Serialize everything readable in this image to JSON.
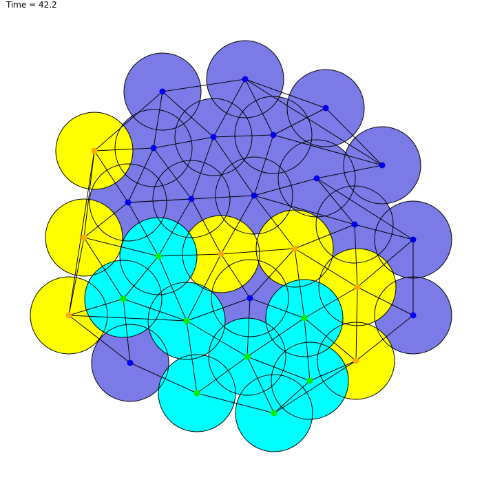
{
  "time_label": "Time = 42.2",
  "colors": {
    "background": "#ffffff",
    "purple_fill": "#7b7be8",
    "yellow_fill": "#ffff00",
    "cyan_fill": "#00ffff",
    "purple_node": "#0000ee",
    "yellow_node": "#ffaa00",
    "cyan_node": "#00ee00",
    "outline": "#000000",
    "edge": "#000000"
  },
  "nodes": [
    {
      "id": "p1",
      "group": "purple"
    },
    {
      "id": "p2",
      "group": "purple"
    },
    {
      "id": "p3",
      "group": "purple"
    },
    {
      "id": "p4",
      "group": "purple"
    },
    {
      "id": "p5",
      "group": "purple"
    },
    {
      "id": "p6",
      "group": "purple"
    },
    {
      "id": "p7",
      "group": "purple"
    },
    {
      "id": "p8",
      "group": "purple"
    },
    {
      "id": "p9",
      "group": "purple"
    },
    {
      "id": "p10",
      "group": "purple"
    },
    {
      "id": "p11",
      "group": "purple"
    },
    {
      "id": "p12",
      "group": "purple"
    },
    {
      "id": "p13",
      "group": "purple"
    },
    {
      "id": "p14",
      "group": "purple"
    },
    {
      "id": "p15",
      "group": "purple"
    },
    {
      "id": "p16",
      "group": "purple"
    },
    {
      "id": "y1",
      "group": "yellow"
    },
    {
      "id": "y2",
      "group": "yellow"
    },
    {
      "id": "y3",
      "group": "yellow"
    },
    {
      "id": "y4",
      "group": "yellow"
    },
    {
      "id": "y5",
      "group": "yellow"
    },
    {
      "id": "y6",
      "group": "yellow"
    },
    {
      "id": "y7",
      "group": "yellow"
    },
    {
      "id": "c1",
      "group": "cyan"
    },
    {
      "id": "c2",
      "group": "cyan"
    },
    {
      "id": "c3",
      "group": "cyan"
    },
    {
      "id": "c4",
      "group": "cyan"
    },
    {
      "id": "c5",
      "group": "cyan"
    },
    {
      "id": "c6",
      "group": "cyan"
    },
    {
      "id": "c7",
      "group": "cyan"
    },
    {
      "id": "c8",
      "group": "cyan"
    }
  ],
  "edges": [
    [
      "p1",
      "p2"
    ],
    [
      "p2",
      "p3"
    ],
    [
      "p1",
      "p4"
    ],
    [
      "p1",
      "p5"
    ],
    [
      "p2",
      "p5"
    ],
    [
      "p2",
      "p6"
    ],
    [
      "p3",
      "p6"
    ],
    [
      "p3",
      "p7"
    ],
    [
      "p2",
      "p7"
    ],
    [
      "y1",
      "p1"
    ],
    [
      "y1",
      "p4"
    ],
    [
      "y1",
      "p8"
    ],
    [
      "p4",
      "p5"
    ],
    [
      "p5",
      "p6"
    ],
    [
      "p6",
      "p7"
    ],
    [
      "p7",
      "p11"
    ],
    [
      "p6",
      "p10"
    ],
    [
      "p5",
      "p9"
    ],
    [
      "p5",
      "p10"
    ],
    [
      "p4",
      "p8"
    ],
    [
      "p4",
      "p9"
    ],
    [
      "p8",
      "p9"
    ],
    [
      "p9",
      "p10"
    ],
    [
      "p10",
      "p11"
    ],
    [
      "p9",
      "p8"
    ],
    [
      "p11",
      "p12"
    ],
    [
      "p10",
      "p12"
    ],
    [
      "p11",
      "p13"
    ],
    [
      "p12",
      "p13"
    ],
    [
      "y1",
      "y2"
    ],
    [
      "y1",
      "y3"
    ],
    [
      "y2",
      "p8"
    ],
    [
      "y2",
      "c1"
    ],
    [
      "y2",
      "c2"
    ],
    [
      "y2",
      "y3"
    ],
    [
      "y3",
      "c2"
    ],
    [
      "y3",
      "p16"
    ],
    [
      "y3",
      "c3"
    ],
    [
      "p8",
      "c1"
    ],
    [
      "p9",
      "c1"
    ],
    [
      "p9",
      "y4"
    ],
    [
      "p10",
      "y4"
    ],
    [
      "p10",
      "y5"
    ],
    [
      "p12",
      "y5"
    ],
    [
      "p12",
      "y6"
    ],
    [
      "p13",
      "y6"
    ],
    [
      "p13",
      "p14"
    ],
    [
      "c1",
      "y4"
    ],
    [
      "y4",
      "y5"
    ],
    [
      "y5",
      "y6"
    ],
    [
      "y6",
      "p14"
    ],
    [
      "y6",
      "y7"
    ],
    [
      "y6",
      "c5"
    ],
    [
      "p14",
      "y7"
    ],
    [
      "c1",
      "c2"
    ],
    [
      "c1",
      "c3"
    ],
    [
      "c2",
      "c3"
    ],
    [
      "c2",
      "p16"
    ],
    [
      "c3",
      "y4"
    ],
    [
      "y4",
      "p15"
    ],
    [
      "c3",
      "p15"
    ],
    [
      "c3",
      "c4"
    ],
    [
      "c3",
      "c6"
    ],
    [
      "y5",
      "p15"
    ],
    [
      "y5",
      "c5"
    ],
    [
      "p15",
      "c5"
    ],
    [
      "p15",
      "c4"
    ],
    [
      "c5",
      "c4"
    ],
    [
      "c5",
      "y7"
    ],
    [
      "c4",
      "c6"
    ],
    [
      "c4",
      "c7"
    ],
    [
      "c4",
      "c8"
    ],
    [
      "p16",
      "c6"
    ],
    [
      "c6",
      "c8"
    ],
    [
      "c7",
      "c8"
    ],
    [
      "c7",
      "y7"
    ],
    [
      "y7",
      "c8"
    ],
    [
      "c5",
      "c7"
    ]
  ]
}
